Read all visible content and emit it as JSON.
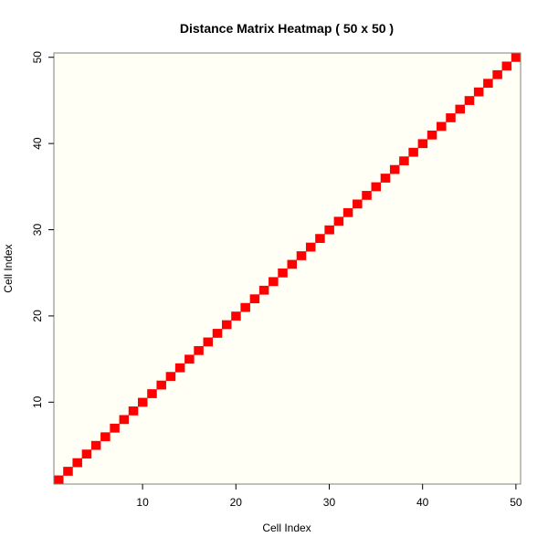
{
  "chart_data": {
    "type": "heatmap",
    "title": "Distance Matrix Heatmap ( 50 x 50 )",
    "xlabel": "Cell Index",
    "ylabel": "Cell Index",
    "n": 50,
    "xlim": [
      0.5,
      50.5
    ],
    "ylim": [
      0.5,
      50.5
    ],
    "x_ticks": [
      10,
      20,
      30,
      40,
      50
    ],
    "y_ticks": [
      10,
      20,
      30,
      40,
      50
    ],
    "background_color": "#fffff5",
    "cell_color": "#ff0000",
    "highlighted_cells": "diagonal (i = j), i = 1..50",
    "grid": false,
    "legend": "none"
  }
}
